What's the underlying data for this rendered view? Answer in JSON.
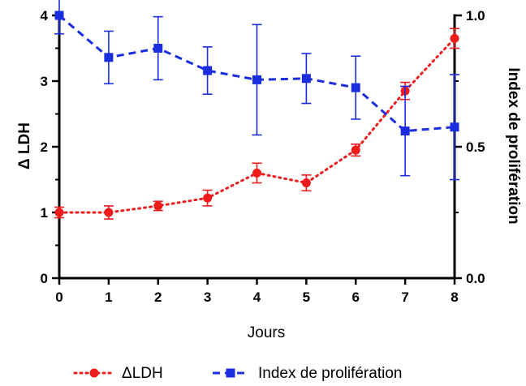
{
  "chart_data": {
    "type": "line",
    "x": [
      0,
      1,
      2,
      3,
      4,
      5,
      6,
      7,
      8
    ],
    "xlabel": "Jours",
    "xlim": [
      0,
      8
    ],
    "x_ticks": [
      "0",
      "1",
      "2",
      "3",
      "4",
      "5",
      "6",
      "7",
      "8"
    ],
    "y_left": {
      "label": "Δ LDH",
      "lim": [
        0,
        4
      ],
      "ticks": [
        "0",
        "1",
        "2",
        "3",
        "4"
      ]
    },
    "y_right": {
      "label": "Index de prolifération",
      "lim": [
        0,
        1
      ],
      "ticks": [
        "0.0",
        "0.5",
        "1.0"
      ]
    },
    "grid": false,
    "legend_position": "bottom",
    "series": [
      {
        "name": "ΔLDH",
        "axis": "left",
        "color": "#ee1c1c",
        "marker": "circle",
        "line_style": "dotted",
        "values": [
          1.0,
          1.0,
          1.1,
          1.22,
          1.6,
          1.45,
          1.95,
          2.85,
          3.65
        ],
        "errors": [
          0.08,
          0.1,
          0.07,
          0.12,
          0.15,
          0.12,
          0.09,
          0.13,
          0.15
        ]
      },
      {
        "name": "Index de prolifération",
        "axis": "right",
        "color": "#1a2ee0",
        "marker": "square",
        "line_style": "dashed",
        "values": [
          1.0,
          0.84,
          0.875,
          0.79,
          0.755,
          0.76,
          0.725,
          0.56,
          0.575
        ],
        "errors": [
          0.07,
          0.1,
          0.12,
          0.09,
          0.21,
          0.095,
          0.12,
          0.17,
          0.2
        ]
      }
    ]
  }
}
